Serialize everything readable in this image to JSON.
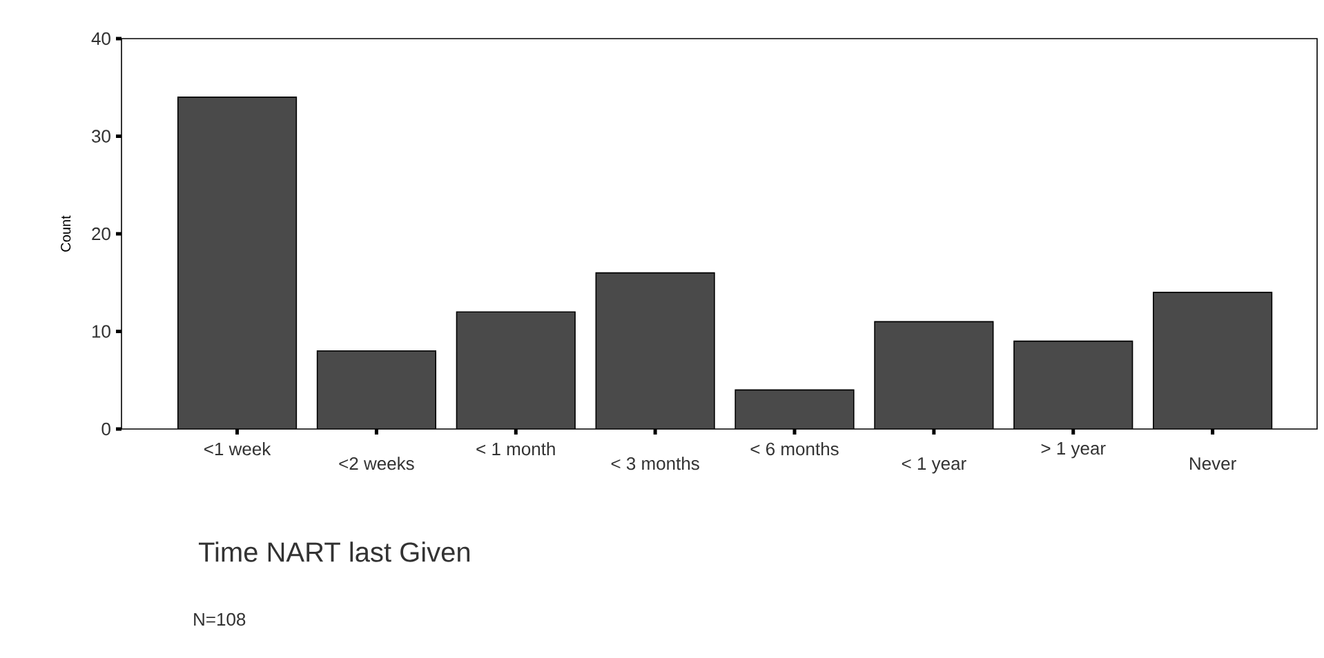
{
  "chart_data": {
    "type": "bar",
    "categories": [
      "<1 week",
      "<2 weeks",
      "< 1 month",
      "< 3 months",
      "< 6 months",
      "< 1 year",
      "> 1 year",
      "Never"
    ],
    "values": [
      34,
      8,
      12,
      16,
      4,
      11,
      9,
      14
    ],
    "color": "#4a4a4a",
    "ylim": [
      0,
      40
    ],
    "yticks": [
      0,
      10,
      20,
      30,
      40
    ],
    "xlabel": "Time NART last Given",
    "ylabel": "Count",
    "annotations": [
      "N=108"
    ]
  }
}
